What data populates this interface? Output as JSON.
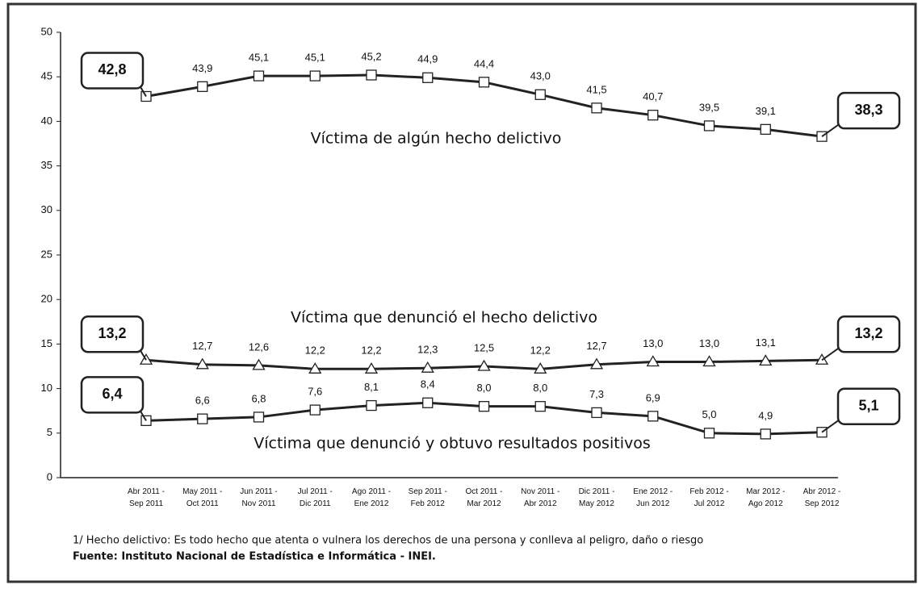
{
  "chart_data": {
    "type": "line",
    "categories": [
      "Abr 2011 -\nSep 2011",
      "May 2011 -\nOct 2011",
      "Jun 2011 -\nNov 2011",
      "Jul 2011 -\nDic 2011",
      "Ago 2011 -\nEne 2012",
      "Sep 2011 -\nFeb 2012",
      "Oct 2011 -\nMar 2012",
      "Nov 2011 -\nAbr 2012",
      "Dic 2011 -\nMay 2012",
      "Ene 2012 -\nJun 2012",
      "Feb 2012 -\nJul 2012",
      "Mar 2012 -\nAgo 2012",
      "Abr 2012 -\nSep 2012"
    ],
    "series": [
      {
        "name": "Víctima de algún hecho delictivo",
        "color": "#222222",
        "marker": "square",
        "values": [
          42.8,
          43.9,
          45.1,
          45.1,
          45.2,
          44.9,
          44.4,
          43.0,
          41.5,
          40.7,
          39.5,
          39.1,
          38.3
        ],
        "value_labels": [
          "42,8",
          "43,9",
          "45,1",
          "45,1",
          "45,2",
          "44,9",
          "44,4",
          "43,0",
          "41,5",
          "40,7",
          "39,5",
          "39,1",
          "38,3"
        ]
      },
      {
        "name": "Víctima que denunció el hecho delictivo",
        "color": "#222222",
        "marker": "triangle",
        "values": [
          13.2,
          12.7,
          12.6,
          12.2,
          12.2,
          12.3,
          12.5,
          12.2,
          12.7,
          13.0,
          13.0,
          13.1,
          13.2
        ],
        "value_labels": [
          "13,2",
          "12,7",
          "12,6",
          "12,2",
          "12,2",
          "12,3",
          "12,5",
          "12,2",
          "12,7",
          "13,0",
          "13,0",
          "13,1",
          "13,2"
        ]
      },
      {
        "name": "Víctima que denunció y obtuvo resultados positivos",
        "color": "#222222",
        "marker": "square",
        "values": [
          6.4,
          6.6,
          6.8,
          7.6,
          8.1,
          8.4,
          8.0,
          8.0,
          7.3,
          6.9,
          5.0,
          4.9,
          5.1
        ],
        "value_labels": [
          "6,4",
          "6,6",
          "6,8",
          "7,6",
          "8,1",
          "8,4",
          "8,0",
          "8,0",
          "7,3",
          "6,9",
          "5,0",
          "4,9",
          "5,1"
        ]
      }
    ],
    "ylim": [
      0,
      50
    ],
    "yticks": [
      0,
      5,
      10,
      15,
      20,
      25,
      30,
      35,
      40,
      45,
      50
    ],
    "grid": false,
    "footnote": "1/ Hecho delictivo: Es todo hecho que atenta o vulnera los derechos de una persona y conlleva al peligro, daño o riesgo",
    "source": "Fuente: Instituto Nacional de Estadística e Informática - INEI."
  }
}
